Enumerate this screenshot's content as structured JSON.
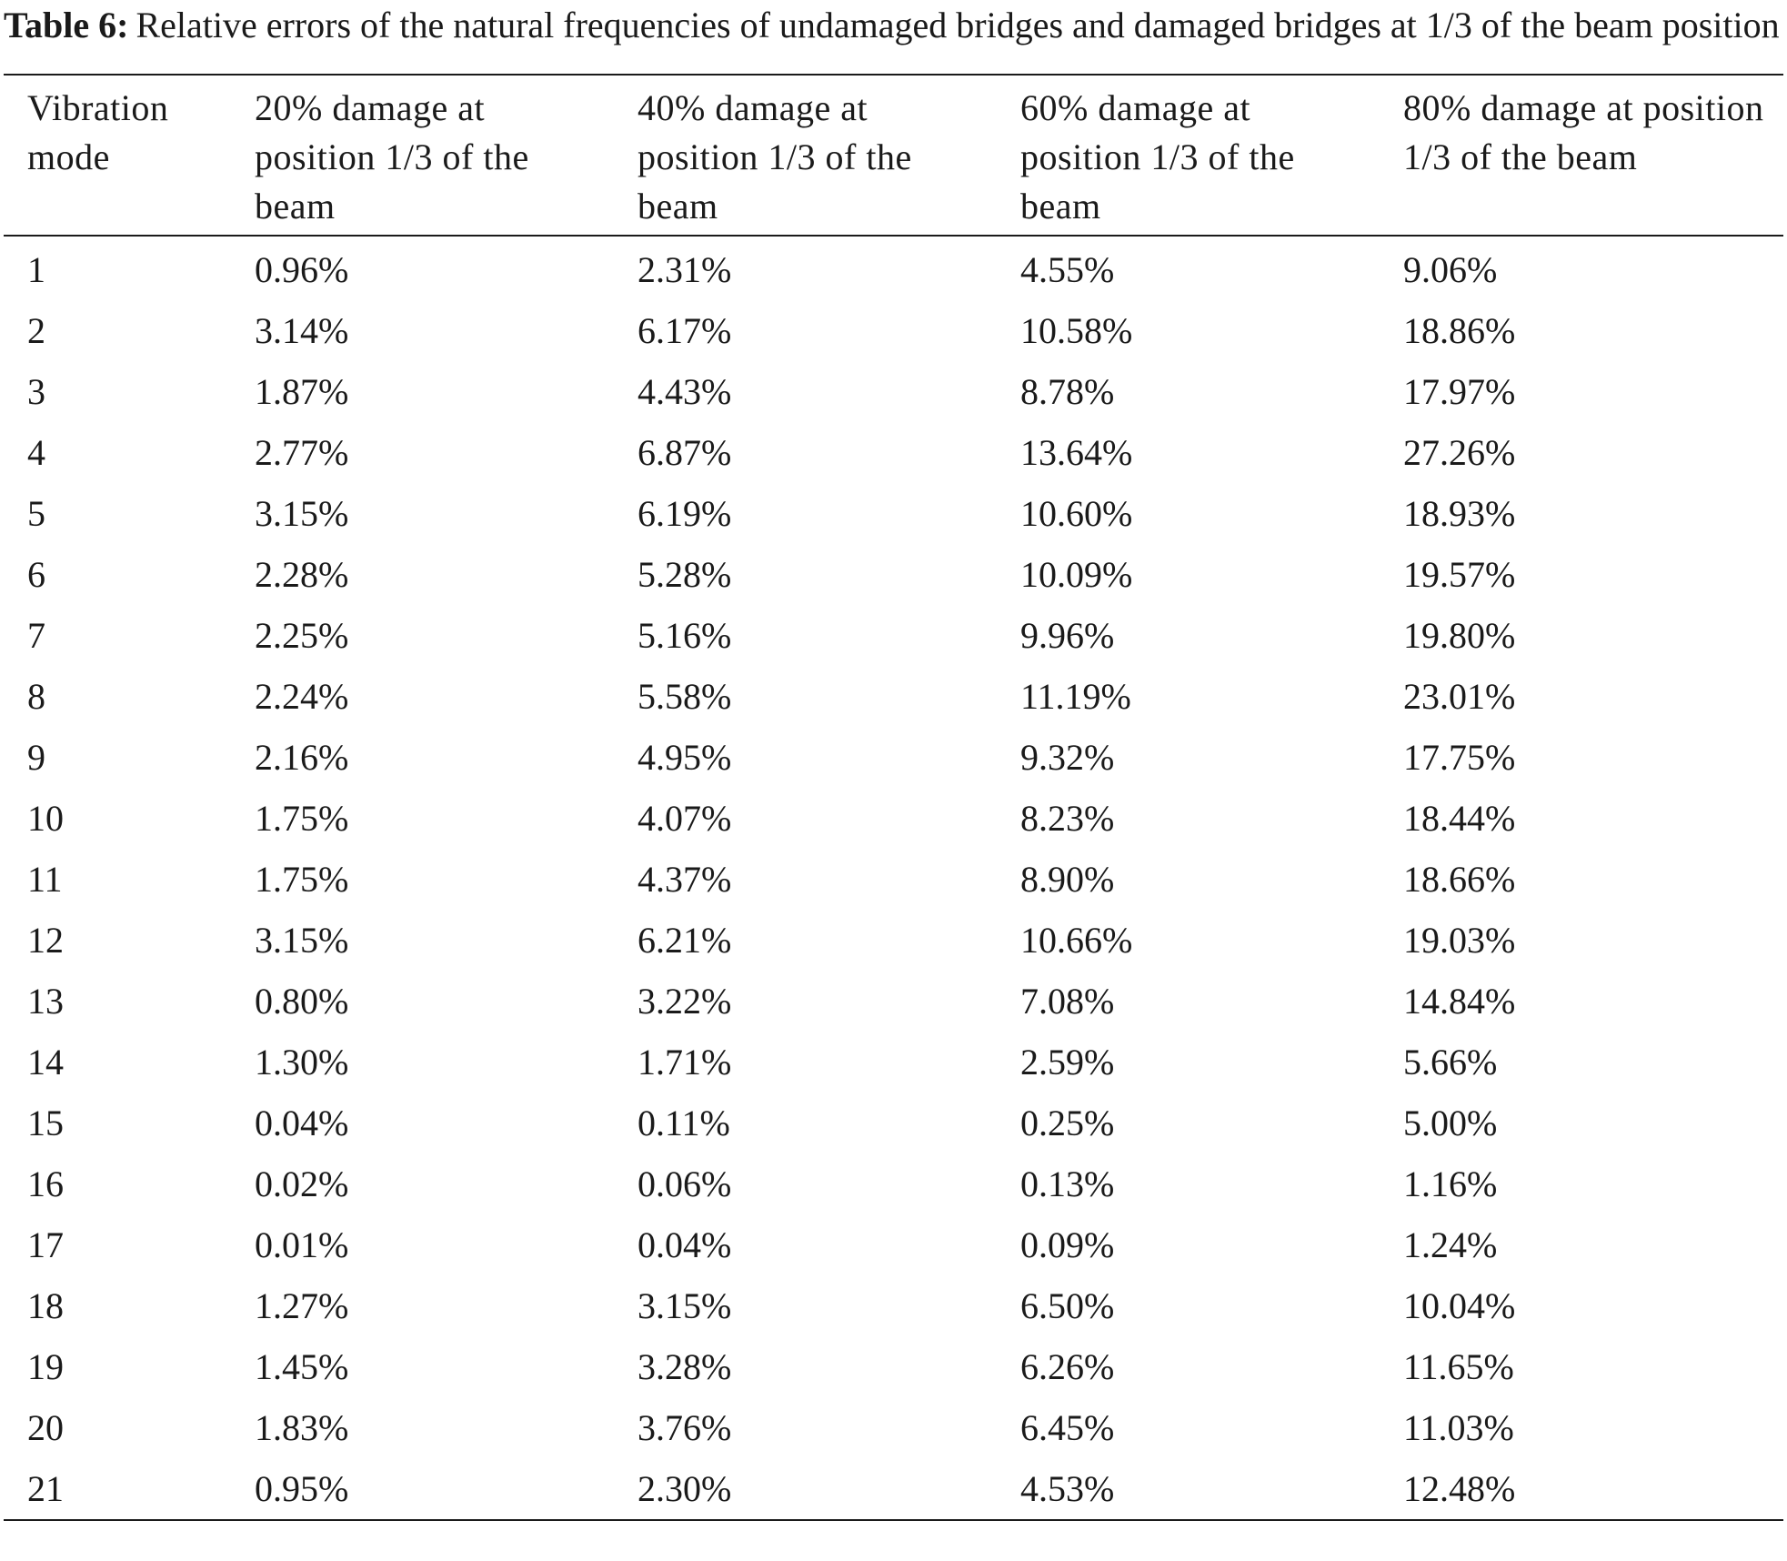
{
  "caption": {
    "label": "Table 6:",
    "text": "Relative errors of the natural frequencies of undamaged bridges and damaged bridges at 1/3 of the beam position"
  },
  "table": {
    "headers": [
      "Vibration mode",
      "20% damage at position 1/3 of the beam",
      "40% damage at position 1/3 of the beam",
      "60% damage at position 1/3 of the beam",
      "80% damage at position 1/3 of the beam"
    ],
    "rows": [
      [
        "1",
        "0.96%",
        "2.31%",
        "4.55%",
        "9.06%"
      ],
      [
        "2",
        "3.14%",
        "6.17%",
        "10.58%",
        "18.86%"
      ],
      [
        "3",
        "1.87%",
        "4.43%",
        "8.78%",
        "17.97%"
      ],
      [
        "4",
        "2.77%",
        "6.87%",
        "13.64%",
        "27.26%"
      ],
      [
        "5",
        "3.15%",
        "6.19%",
        "10.60%",
        "18.93%"
      ],
      [
        "6",
        "2.28%",
        "5.28%",
        "10.09%",
        "19.57%"
      ],
      [
        "7",
        "2.25%",
        "5.16%",
        "9.96%",
        "19.80%"
      ],
      [
        "8",
        "2.24%",
        "5.58%",
        "11.19%",
        "23.01%"
      ],
      [
        "9",
        "2.16%",
        "4.95%",
        "9.32%",
        "17.75%"
      ],
      [
        "10",
        "1.75%",
        "4.07%",
        "8.23%",
        "18.44%"
      ],
      [
        "11",
        "1.75%",
        "4.37%",
        "8.90%",
        "18.66%"
      ],
      [
        "12",
        "3.15%",
        "6.21%",
        "10.66%",
        "19.03%"
      ],
      [
        "13",
        "0.80%",
        "3.22%",
        "7.08%",
        "14.84%"
      ],
      [
        "14",
        "1.30%",
        "1.71%",
        "2.59%",
        "5.66%"
      ],
      [
        "15",
        "0.04%",
        "0.11%",
        "0.25%",
        "5.00%"
      ],
      [
        "16",
        "0.02%",
        "0.06%",
        "0.13%",
        "1.16%"
      ],
      [
        "17",
        "0.01%",
        "0.04%",
        "0.09%",
        "1.24%"
      ],
      [
        "18",
        "1.27%",
        "3.15%",
        "6.50%",
        "10.04%"
      ],
      [
        "19",
        "1.45%",
        "3.28%",
        "6.26%",
        "11.65%"
      ],
      [
        "20",
        "1.83%",
        "3.76%",
        "6.45%",
        "11.03%"
      ],
      [
        "21",
        "0.95%",
        "2.30%",
        "4.53%",
        "12.48%"
      ]
    ]
  }
}
